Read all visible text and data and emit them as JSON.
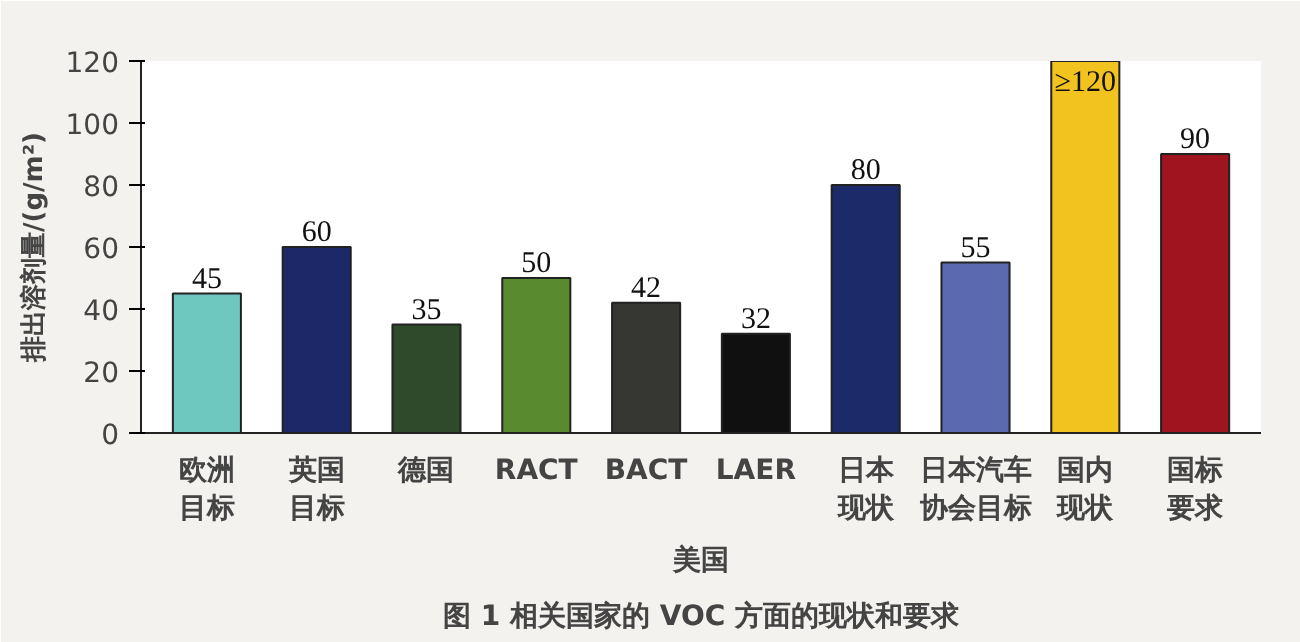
{
  "chart_data": {
    "type": "bar",
    "title": "图 1 相关国家的 VOC 方面的现状和要求",
    "ylabel": "排出溶剂量/(g/m²)",
    "categories": [
      "欧洲目标",
      "英国目标",
      "德国",
      "RACT",
      "BACT",
      "LAER",
      "日本现状",
      "日本汽车协会目标",
      "国内现状",
      "国标要求"
    ],
    "values": [
      45,
      60,
      35,
      50,
      42,
      32,
      80,
      55,
      120,
      90
    ],
    "value_labels": [
      "45",
      "60",
      "35",
      "50",
      "42",
      "32",
      "80",
      "55",
      "≥120",
      "90"
    ],
    "colors": [
      "#6ec8c0",
      "#1c2868",
      "#2e4a2a",
      "#5a8a30",
      "#363632",
      "#101010",
      "#1c2a6a",
      "#5a6ab0",
      "#f2c21e",
      "#a01420"
    ],
    "ylim": [
      0,
      120
    ],
    "yticks": [
      0,
      20,
      40,
      60,
      80,
      100,
      120
    ],
    "annotations": [
      "美国"
    ]
  }
}
